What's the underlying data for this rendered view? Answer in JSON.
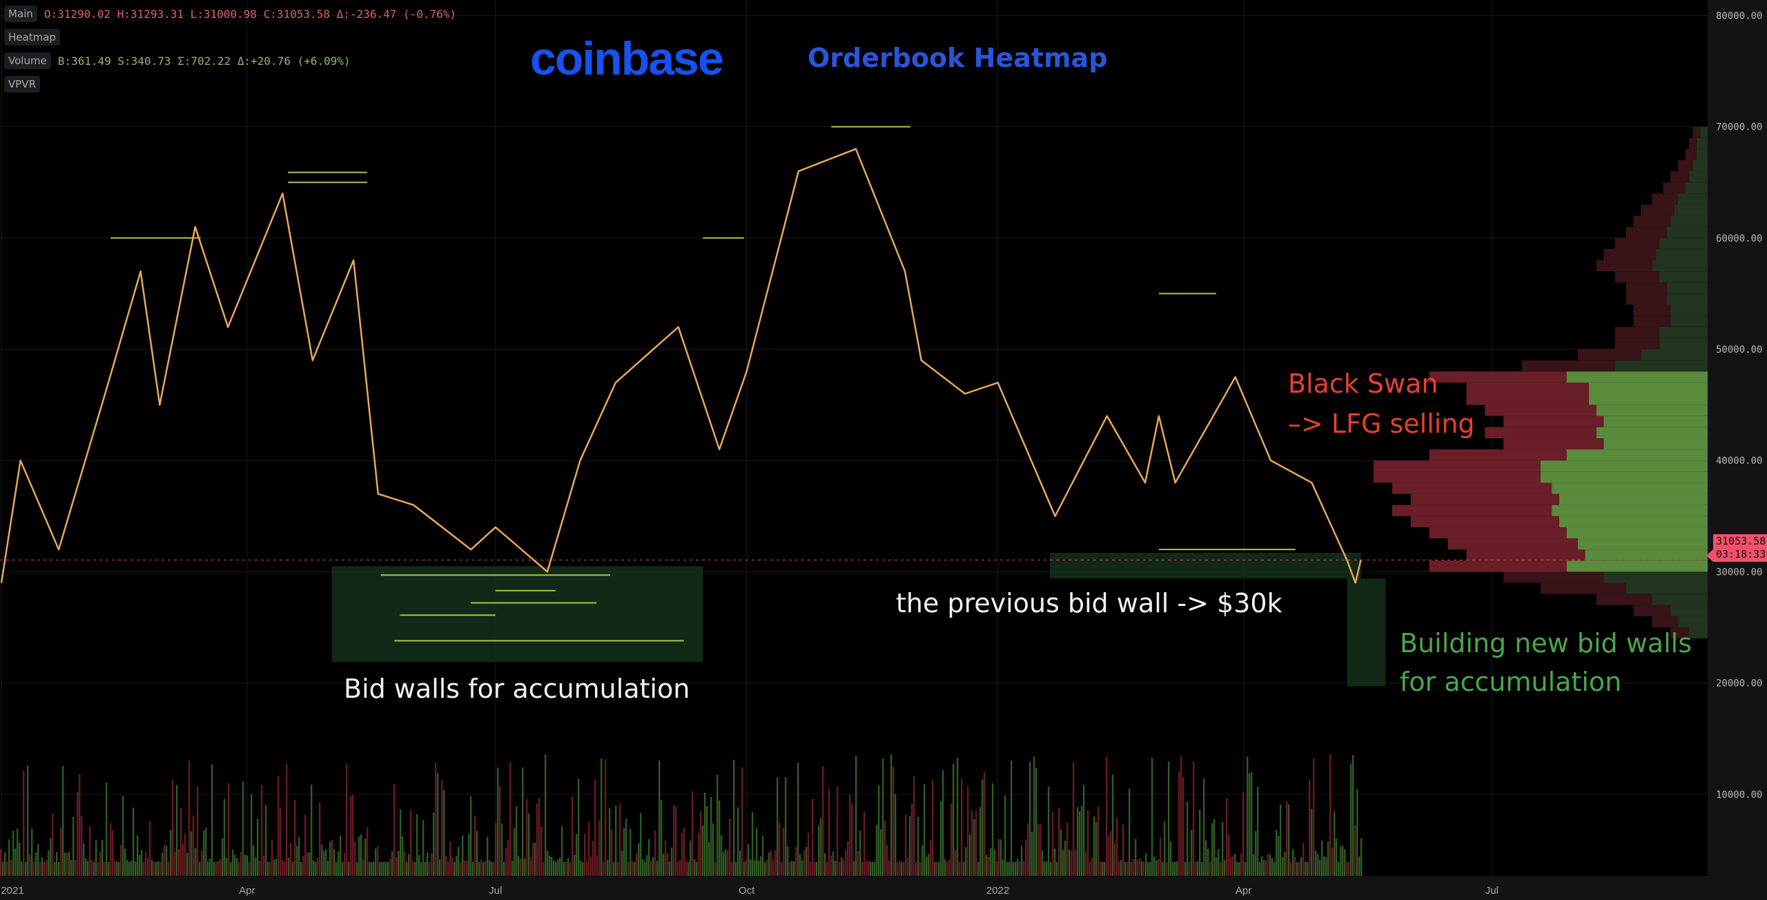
{
  "legend": {
    "main_label": "Main",
    "main_values": "O:31290.02 H:31293.31 L:31000.98 C:31053.58 Δ:-236.47 (-0.76%)",
    "heatmap_label": "Heatmap",
    "volume_label": "Volume",
    "volume_values": "B:361.49 S:340.73 Σ:702.22 Δ:+20.76 (+6.09%)",
    "vpvr_label": "VPVR"
  },
  "branding": {
    "logo": "coinbase",
    "title": "Orderbook Heatmap"
  },
  "annotations_text": {
    "bid_walls": "Bid walls for accumulation",
    "previous_wall": "the previous bid wall -> $30k",
    "black_swan_1": "Black Swan",
    "black_swan_2": "–> LFG selling",
    "building_1": "Building new bid walls",
    "building_2": "for accumulation"
  },
  "last_price": {
    "value": "31053.58",
    "countdown": "03:18:33"
  },
  "colors": {
    "price_line": "#e8a858",
    "wall": "#a8c84a",
    "box": "#16301c",
    "last_price": "#f2506a",
    "vpvr_buy_va": "#5a8a3c",
    "vpvr_buy": "#223320",
    "vpvr_sell_va": "#6a1e28",
    "vpvr_sell": "#381318",
    "volume_buy": "#3f7a30",
    "volume_sell": "#8a2430"
  },
  "chart_data": {
    "type": "line",
    "title": "",
    "xlabel": "",
    "ylabel": "",
    "ylim": [
      0,
      80000
    ],
    "xlim": [
      "2021-01-01",
      "2022-09-15"
    ],
    "grid": true,
    "y_ticks": [
      "80000.00",
      "70000.00",
      "60000.00",
      "50000.00",
      "40000.00",
      "30000.00",
      "20000.00",
      "10000.00"
    ],
    "x_ticks": [
      {
        "label": "2021",
        "date": "2021-01-01"
      },
      {
        "label": "Apr",
        "date": "2021-04-01"
      },
      {
        "label": "Jul",
        "date": "2021-07-01"
      },
      {
        "label": "Oct",
        "date": "2021-10-01"
      },
      {
        "label": "2022",
        "date": "2022-01-01"
      },
      {
        "label": "Apr",
        "date": "2022-04-01"
      },
      {
        "label": "Jul",
        "date": "2022-07-01"
      }
    ],
    "price_series": [
      [
        "2021-01-01",
        29000
      ],
      [
        "2021-01-08",
        40000
      ],
      [
        "2021-01-22",
        32000
      ],
      [
        "2021-02-08",
        46000
      ],
      [
        "2021-02-21",
        57000
      ],
      [
        "2021-02-28",
        45000
      ],
      [
        "2021-03-13",
        61000
      ],
      [
        "2021-03-25",
        52000
      ],
      [
        "2021-04-14",
        64000
      ],
      [
        "2021-04-25",
        49000
      ],
      [
        "2021-05-10",
        58000
      ],
      [
        "2021-05-19",
        37000
      ],
      [
        "2021-06-01",
        36000
      ],
      [
        "2021-06-22",
        32000
      ],
      [
        "2021-07-01",
        34000
      ],
      [
        "2021-07-20",
        30000
      ],
      [
        "2021-08-01",
        40000
      ],
      [
        "2021-08-14",
        47000
      ],
      [
        "2021-09-06",
        52000
      ],
      [
        "2021-09-21",
        41000
      ],
      [
        "2021-10-01",
        48000
      ],
      [
        "2021-10-20",
        66000
      ],
      [
        "2021-11-10",
        68000
      ],
      [
        "2021-11-28",
        57000
      ],
      [
        "2021-12-04",
        49000
      ],
      [
        "2021-12-20",
        46000
      ],
      [
        "2022-01-01",
        47000
      ],
      [
        "2022-01-22",
        35000
      ],
      [
        "2022-02-10",
        44000
      ],
      [
        "2022-02-24",
        38000
      ],
      [
        "2022-03-01",
        44000
      ],
      [
        "2022-03-07",
        38000
      ],
      [
        "2022-03-29",
        47500
      ],
      [
        "2022-04-11",
        40000
      ],
      [
        "2022-04-26",
        38000
      ],
      [
        "2022-05-09",
        31000
      ],
      [
        "2022-05-12",
        29000
      ],
      [
        "2022-05-14",
        31053.58
      ]
    ],
    "last_price": 31053.58,
    "bid_walls": [
      {
        "price": 29700,
        "from": "2021-05-20",
        "to": "2021-08-12"
      },
      {
        "price": 28300,
        "from": "2021-07-01",
        "to": "2021-07-23"
      },
      {
        "price": 27200,
        "from": "2021-06-22",
        "to": "2021-08-07"
      },
      {
        "price": 26100,
        "from": "2021-05-27",
        "to": "2021-07-01"
      },
      {
        "price": 23800,
        "from": "2021-05-25",
        "to": "2021-09-08"
      },
      {
        "price": 32000,
        "from": "2022-03-01",
        "to": "2022-04-20"
      },
      {
        "price": 55000,
        "from": "2022-03-01",
        "to": "2022-03-22"
      },
      {
        "price": 65900,
        "from": "2021-04-16",
        "to": "2021-05-15"
      },
      {
        "price": 65000,
        "from": "2021-04-16",
        "to": "2021-05-15"
      },
      {
        "price": 60000,
        "from": "2021-02-10",
        "to": "2021-03-15"
      },
      {
        "price": 60000,
        "from": "2021-09-15",
        "to": "2021-09-30"
      },
      {
        "price": 70000,
        "from": "2021-11-01",
        "to": "2021-11-30"
      }
    ],
    "highlight_boxes": [
      {
        "from": "2021-05-02",
        "to": "2021-09-15",
        "price_high": 30500,
        "price_low": 21900
      },
      {
        "from": "2022-01-20",
        "to": "2022-05-14",
        "price_high": 31700,
        "price_low": 29400
      },
      {
        "from": "2022-05-09",
        "to": "2022-05-23",
        "price_high": 29400,
        "price_low": 19700
      }
    ],
    "vpvr": {
      "value_area": [
        30000,
        47500
      ],
      "prices": [
        24000,
        25000,
        26000,
        27000,
        28000,
        29000,
        30000,
        31000,
        32000,
        33000,
        34000,
        35000,
        36000,
        37000,
        38000,
        39000,
        40000,
        41000,
        42000,
        43000,
        44000,
        45000,
        46000,
        47000,
        48000,
        49000,
        50000,
        51000,
        52000,
        53000,
        54000,
        55000,
        56000,
        57000,
        58000,
        59000,
        60000,
        61000,
        62000,
        63000,
        64000,
        65000,
        66000,
        67000,
        68000,
        69000
      ],
      "buy": [
        5,
        8,
        10,
        15,
        22,
        28,
        38,
        33,
        35,
        38,
        40,
        42,
        40,
        42,
        45,
        45,
        38,
        28,
        30,
        28,
        30,
        32,
        32,
        38,
        25,
        18,
        13,
        13,
        10,
        10,
        11,
        11,
        13,
        15,
        14,
        13,
        11,
        10,
        9,
        8,
        6,
        5,
        4,
        3,
        3,
        2
      ],
      "sell": [
        5,
        7,
        10,
        15,
        23,
        27,
        37,
        32,
        35,
        37,
        40,
        43,
        40,
        43,
        45,
        45,
        37,
        27,
        30,
        27,
        30,
        33,
        33,
        37,
        25,
        17,
        12,
        12,
        10,
        10,
        11,
        11,
        12,
        15,
        14,
        12,
        11,
        10,
        9,
        7,
        6,
        5,
        4,
        3,
        2,
        2
      ]
    }
  }
}
